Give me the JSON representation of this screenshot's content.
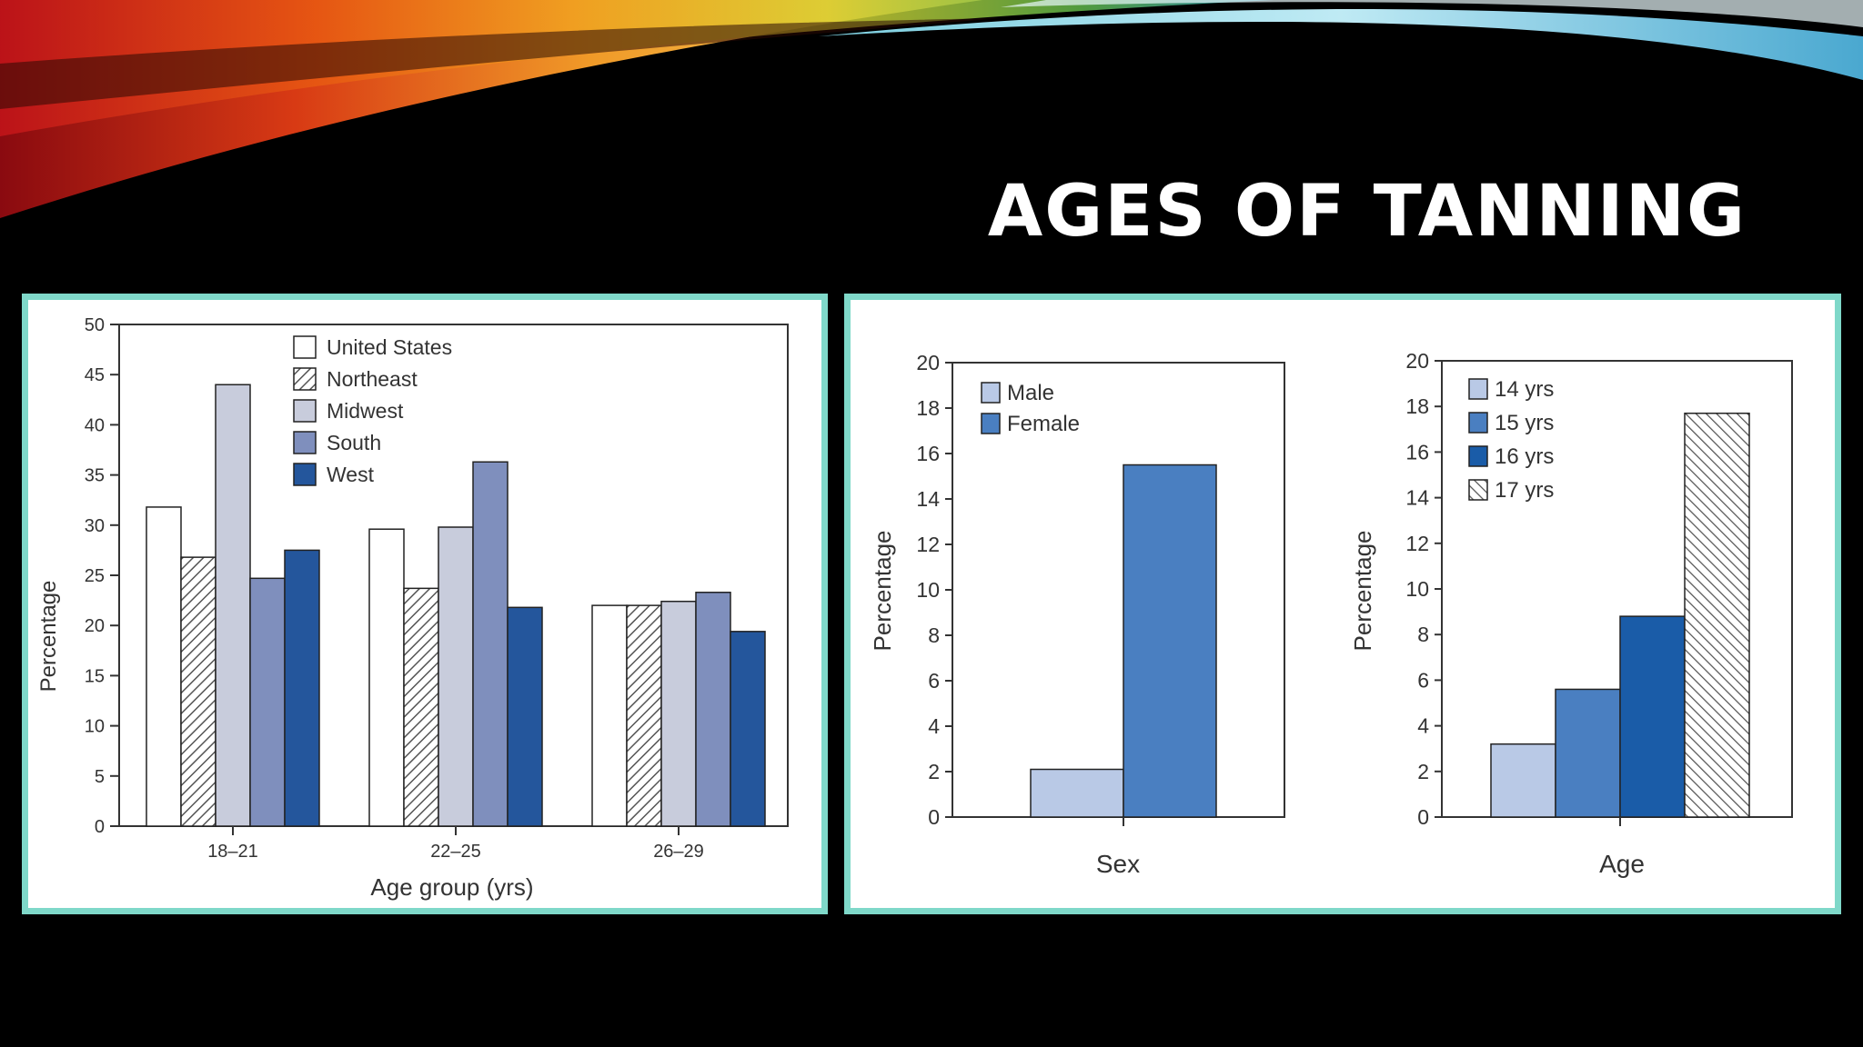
{
  "slide": {
    "title": "AGES OF TANNING"
  },
  "colors": {
    "panel_border": "#7fd8c9",
    "background": "#000000"
  },
  "chart_data": [
    {
      "type": "bar",
      "title": "",
      "xlabel": "Age group (yrs)",
      "ylabel": "Percentage",
      "ylim": [
        0,
        50
      ],
      "yticks": [
        0,
        5,
        10,
        15,
        20,
        25,
        30,
        35,
        40,
        45,
        50
      ],
      "categories": [
        "18–21",
        "22–25",
        "26–29"
      ],
      "legend_position": "top-left",
      "series": [
        {
          "name": "United States",
          "values": [
            31.8,
            29.6,
            22.0
          ],
          "color": "#ffffff",
          "pattern": "none"
        },
        {
          "name": "Northeast",
          "values": [
            26.8,
            23.7,
            22.0
          ],
          "color": "#ffffff",
          "pattern": "hatch"
        },
        {
          "name": "Midwest",
          "values": [
            44.0,
            29.8,
            22.4
          ],
          "color": "#c8ccdc",
          "pattern": "none"
        },
        {
          "name": "South",
          "values": [
            24.7,
            36.3,
            23.3
          ],
          "color": "#7f8fbd",
          "pattern": "none"
        },
        {
          "name": "West",
          "values": [
            27.5,
            21.8,
            19.4
          ],
          "color": "#24569c",
          "pattern": "none"
        }
      ]
    },
    {
      "type": "bar",
      "title": "",
      "xlabel": "Sex",
      "ylabel": "Percentage",
      "ylim": [
        0,
        20
      ],
      "yticks": [
        0,
        2,
        4,
        6,
        8,
        10,
        12,
        14,
        16,
        18,
        20
      ],
      "legend_position": "top-left",
      "series": [
        {
          "name": "Male",
          "values": [
            2.1
          ],
          "color": "#b9c9e6",
          "pattern": "none"
        },
        {
          "name": "Female",
          "values": [
            15.5
          ],
          "color": "#4a7fc1",
          "pattern": "none"
        }
      ]
    },
    {
      "type": "bar",
      "title": "",
      "xlabel": "Age",
      "ylabel": "Percentage",
      "ylim": [
        0,
        20
      ],
      "yticks": [
        0,
        2,
        4,
        6,
        8,
        10,
        12,
        14,
        16,
        18,
        20
      ],
      "legend_position": "top-left",
      "series": [
        {
          "name": "14 yrs",
          "values": [
            3.2
          ],
          "color": "#b9c9e6",
          "pattern": "none"
        },
        {
          "name": "15 yrs",
          "values": [
            5.6
          ],
          "color": "#4a7fc1",
          "pattern": "none"
        },
        {
          "name": "16 yrs",
          "values": [
            8.8
          ],
          "color": "#1a5ca8",
          "pattern": "none"
        },
        {
          "name": "17 yrs",
          "values": [
            17.7
          ],
          "color": "#ffffff",
          "pattern": "hatch"
        }
      ]
    }
  ]
}
